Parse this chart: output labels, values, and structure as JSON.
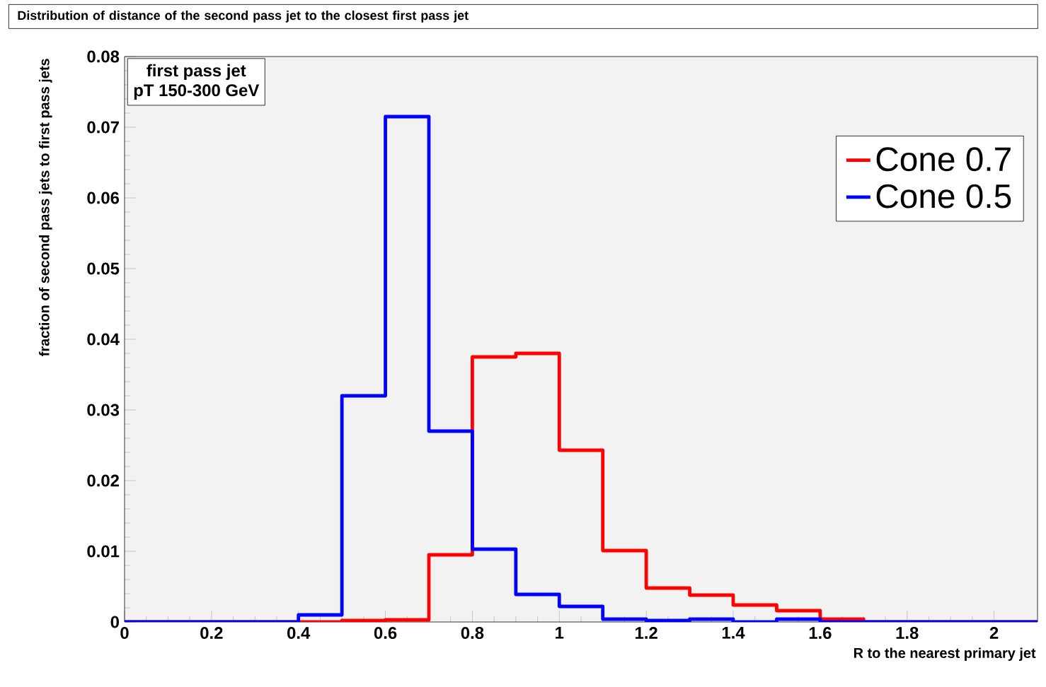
{
  "chart_data": {
    "type": "histogram",
    "title": "Distribution of distance of the second pass jet to the closest first pass  jet",
    "xlabel": "R to the nearest primary jet",
    "ylabel": "fraction of second pass jets to first pass jets",
    "annotations": [
      "first pass jet",
      "pT 150-300 GeV"
    ],
    "bins": [
      0,
      0.1,
      0.2,
      0.3,
      0.4,
      0.5,
      0.6,
      0.7,
      0.8,
      0.9,
      1,
      1.1,
      1.2,
      1.3,
      1.4,
      1.5,
      1.6,
      1.7,
      1.8,
      1.9,
      2,
      2.1
    ],
    "series": [
      {
        "name": "Cone 0.7",
        "color": "#ff0000",
        "values": [
          0,
          0,
          0,
          0,
          0,
          0.0002,
          0.0003,
          0.0095,
          0.0375,
          0.038,
          0.0243,
          0.0101,
          0.0048,
          0.0038,
          0.0024,
          0.0016,
          0.0004,
          0,
          0,
          0,
          0
        ]
      },
      {
        "name": "Cone 0.5",
        "color": "#0000ff",
        "values": [
          0,
          0,
          0,
          0,
          0.001,
          0.032,
          0.0715,
          0.027,
          0.0103,
          0.0039,
          0.0022,
          0.0004,
          0.0002,
          0.0004,
          0,
          0.0004,
          0,
          0,
          0,
          0,
          0
        ]
      }
    ],
    "xlim": [
      0,
      2.1
    ],
    "ylim": [
      0,
      0.08
    ],
    "xticks": [
      0,
      0.2,
      0.4,
      0.6,
      0.8,
      1,
      1.2,
      1.4,
      1.6,
      1.8,
      2
    ],
    "yticks": [
      0,
      0.01,
      0.02,
      0.03,
      0.04,
      0.05,
      0.06,
      0.07,
      0.08
    ],
    "legend": "top right"
  }
}
